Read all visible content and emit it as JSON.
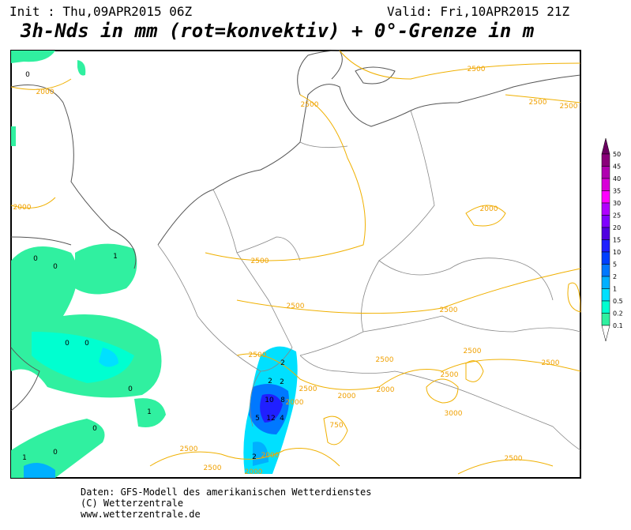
{
  "header": {
    "init": "Init : Thu,09APR2015 06Z",
    "valid": "Valid: Fri,10APR2015 21Z",
    "title": "3h-Nds in mm (rot=konvektiv) + 0°-Grenze in m"
  },
  "legend": {
    "labels": [
      "50",
      "45",
      "40",
      "35",
      "30",
      "25",
      "20",
      "15",
      "10",
      "5",
      "2",
      "1",
      "0.5",
      "0.2",
      "0.1"
    ],
    "colors": [
      "#6a0060",
      "#8a007a",
      "#b000b0",
      "#d800d8",
      "#ff00ff",
      "#b000ff",
      "#8000ff",
      "#5000e0",
      "#2020ff",
      "#0040ff",
      "#0078ff",
      "#00b0ff",
      "#00e0ff",
      "#00ffd0",
      "#30f0a0",
      "#ffffff"
    ]
  },
  "contour_labels": [
    "2500",
    "2500",
    "2500",
    "2500",
    "2000",
    "2000",
    "2000",
    "2500",
    "2500",
    "2500",
    "2500",
    "2500",
    "2500",
    "2500",
    "2500",
    "2000",
    "2000",
    "3000",
    "750",
    "2000",
    "2000",
    "2500",
    "2500",
    "2000",
    "2500",
    "2500"
  ],
  "precip_labels": [
    "10",
    "8",
    "12",
    "4",
    "5",
    "2",
    "2",
    "2",
    "1",
    "1",
    "2",
    "1",
    "0",
    "0",
    "0",
    "0",
    "0",
    "0",
    "0",
    "0"
  ],
  "footer": {
    "source": "Daten: GFS-Modell des amerikanischen Wetterdienstes",
    "copyright": "(C) Wetterzentrale",
    "url": "www.wetterzentrale.de"
  }
}
